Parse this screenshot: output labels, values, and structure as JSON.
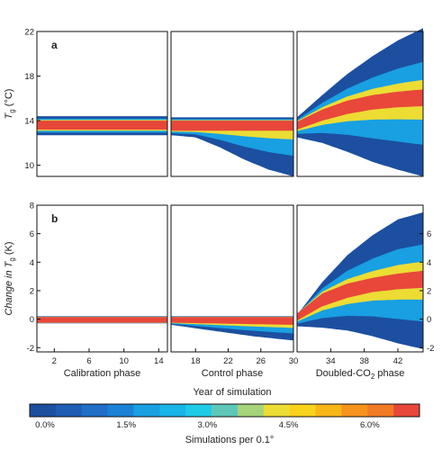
{
  "chart_data": [
    {
      "type": "area",
      "panel_label": "a",
      "ylabel_main": "T",
      "ylabel_sub": "g",
      "ylabel_unit": " (°C)",
      "ylim": [
        9,
        22
      ],
      "yticks": [
        10,
        14,
        18,
        22
      ],
      "phases": [
        {
          "name": "Calibration phase",
          "x_range": [
            0,
            15
          ]
        },
        {
          "name": "Control phase",
          "x_range": [
            15,
            30
          ]
        },
        {
          "name": "Doubled-CO2 phase",
          "x_range": [
            30,
            45
          ]
        }
      ],
      "bands": [
        {
          "phase": 0,
          "envelope_x": [
            0,
            15
          ],
          "envelope_low": [
            12.7,
            12.7
          ],
          "envelope_high": [
            14.4,
            14.4
          ],
          "core_low": [
            13.2,
            13.2
          ],
          "core_high": [
            14.0,
            14.0
          ]
        },
        {
          "phase": 1,
          "envelope_x": [
            15,
            18,
            21,
            24,
            27,
            30
          ],
          "envelope_low": [
            12.7,
            12.5,
            11.6,
            10.5,
            9.6,
            9.0
          ],
          "envelope_high": [
            14.3,
            14.3,
            14.3,
            14.3,
            14.3,
            14.3
          ],
          "core_low": [
            13.1,
            13.1,
            13.1,
            13.1,
            13.1,
            13.1
          ],
          "core_high": [
            14.0,
            14.0,
            14.0,
            14.0,
            14.0,
            14.0
          ]
        },
        {
          "phase": 2,
          "envelope_x": [
            30,
            33,
            36,
            39,
            42,
            45
          ],
          "envelope_low": [
            12.5,
            12.0,
            11.2,
            10.3,
            9.6,
            9.0
          ],
          "envelope_high": [
            14.3,
            16.3,
            18.2,
            19.8,
            21.2,
            22.3
          ],
          "core_low": [
            13.2,
            14.0,
            14.6,
            15.0,
            15.2,
            15.3
          ],
          "core_high": [
            13.9,
            15.0,
            15.8,
            16.3,
            16.6,
            16.8
          ]
        }
      ]
    },
    {
      "type": "area",
      "panel_label": "b",
      "ylabel_main": "Change in T",
      "ylabel_sub": "g",
      "ylabel_unit": " (K)",
      "ylim": [
        -2.3,
        8
      ],
      "yticks": [
        -2,
        0,
        2,
        4,
        6,
        8
      ],
      "right_yticks": [
        -2,
        0,
        2,
        4,
        6
      ],
      "phases": [
        {
          "name": "Calibration phase",
          "x_range": [
            0,
            15
          ]
        },
        {
          "name": "Control phase",
          "x_range": [
            15,
            30
          ]
        },
        {
          "name": "Doubled-CO2 phase",
          "x_range": [
            30,
            45
          ]
        }
      ],
      "bands": [
        {
          "phase": 0,
          "envelope_x": [
            0,
            15
          ],
          "envelope_low": [
            -0.3,
            -0.3
          ],
          "envelope_high": [
            0.2,
            0.2
          ],
          "core_low": [
            -0.25,
            -0.25
          ],
          "core_high": [
            0.15,
            0.15
          ]
        },
        {
          "phase": 1,
          "envelope_x": [
            15,
            20,
            25,
            30
          ],
          "envelope_low": [
            -0.4,
            -0.8,
            -1.2,
            -1.5
          ],
          "envelope_high": [
            0.2,
            0.2,
            0.2,
            0.2
          ],
          "core_low": [
            -0.25,
            -0.3,
            -0.35,
            -0.4
          ],
          "core_high": [
            0.15,
            0.15,
            0.15,
            0.15
          ]
        },
        {
          "phase": 2,
          "envelope_x": [
            30,
            33,
            36,
            39,
            42,
            45
          ],
          "envelope_low": [
            -0.5,
            -0.6,
            -0.8,
            -1.2,
            -1.7,
            -2.1
          ],
          "envelope_high": [
            0.3,
            2.6,
            4.5,
            5.9,
            7.0,
            7.5
          ],
          "core_low": [
            -0.1,
            0.9,
            1.5,
            1.9,
            2.1,
            2.2
          ],
          "core_high": [
            0.4,
            1.8,
            2.5,
            2.9,
            3.2,
            3.4
          ]
        }
      ]
    }
  ],
  "x_axis": {
    "label": "Year of simulation",
    "ticks": [
      2,
      6,
      10,
      14,
      18,
      22,
      26,
      30,
      34,
      38,
      42
    ],
    "phase_labels": [
      "Calibration phase",
      "Control phase",
      "Doubled-CO",
      "2",
      " phase"
    ]
  },
  "colorbar": {
    "label": "Simulations per 0.1°",
    "tick_labels": [
      "0.0%",
      "1.5%",
      "3.0%",
      "4.5%",
      "6.0%"
    ],
    "tick_values": [
      0,
      1.5,
      3.0,
      4.5,
      6.0
    ],
    "range": [
      0,
      7.2
    ],
    "colors": [
      "#1c4fa0",
      "#1f5db5",
      "#1f6ec8",
      "#1a82d6",
      "#18a0e2",
      "#17b5e8",
      "#1ecbe6",
      "#5ec8b8",
      "#a6d47a",
      "#ecdc34",
      "#f9d21b",
      "#f8b616",
      "#f7931d",
      "#f37a25",
      "#e8473a"
    ]
  },
  "colors": {
    "background": "#1c4fa0",
    "mid": "#18a0e2",
    "high": "#ecdc34",
    "core": "#e8473a"
  }
}
